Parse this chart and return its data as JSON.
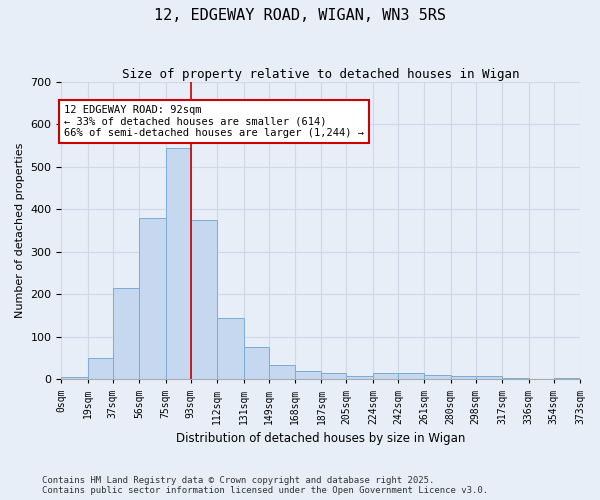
{
  "title1": "12, EDGEWAY ROAD, WIGAN, WN3 5RS",
  "title2": "Size of property relative to detached houses in Wigan",
  "xlabel": "Distribution of detached houses by size in Wigan",
  "ylabel": "Number of detached properties",
  "bar_color": "#c5d8f0",
  "bar_edge_color": "#7aadd4",
  "background_color": "#e8eef8",
  "grid_color": "#d0d8e8",
  "bins": [
    0,
    19,
    37,
    56,
    75,
    93,
    112,
    131,
    149,
    168,
    187,
    205,
    224,
    242,
    261,
    280,
    298,
    317,
    336,
    354,
    373
  ],
  "bin_labels": [
    "0sqm",
    "19sqm",
    "37sqm",
    "56sqm",
    "75sqm",
    "93sqm",
    "112sqm",
    "131sqm",
    "149sqm",
    "168sqm",
    "187sqm",
    "205sqm",
    "224sqm",
    "242sqm",
    "261sqm",
    "280sqm",
    "298sqm",
    "317sqm",
    "336sqm",
    "354sqm",
    "373sqm"
  ],
  "values": [
    5,
    50,
    215,
    380,
    545,
    375,
    145,
    75,
    35,
    20,
    15,
    8,
    15,
    15,
    10,
    8,
    8,
    3,
    0,
    3
  ],
  "red_line_x": 93,
  "annot_line1": "12 EDGEWAY ROAD: 92sqm",
  "annot_line2": "← 33% of detached houses are smaller (614)",
  "annot_line3": "66% of semi-detached houses are larger (1,244) →",
  "annotation_box_color": "#ffffff",
  "annotation_edge_color": "#cc0000",
  "red_line_color": "#cc0000",
  "ylim": [
    0,
    700
  ],
  "yticks": [
    0,
    100,
    200,
    300,
    400,
    500,
    600,
    700
  ],
  "footer1": "Contains HM Land Registry data © Crown copyright and database right 2025.",
  "footer2": "Contains public sector information licensed under the Open Government Licence v3.0."
}
